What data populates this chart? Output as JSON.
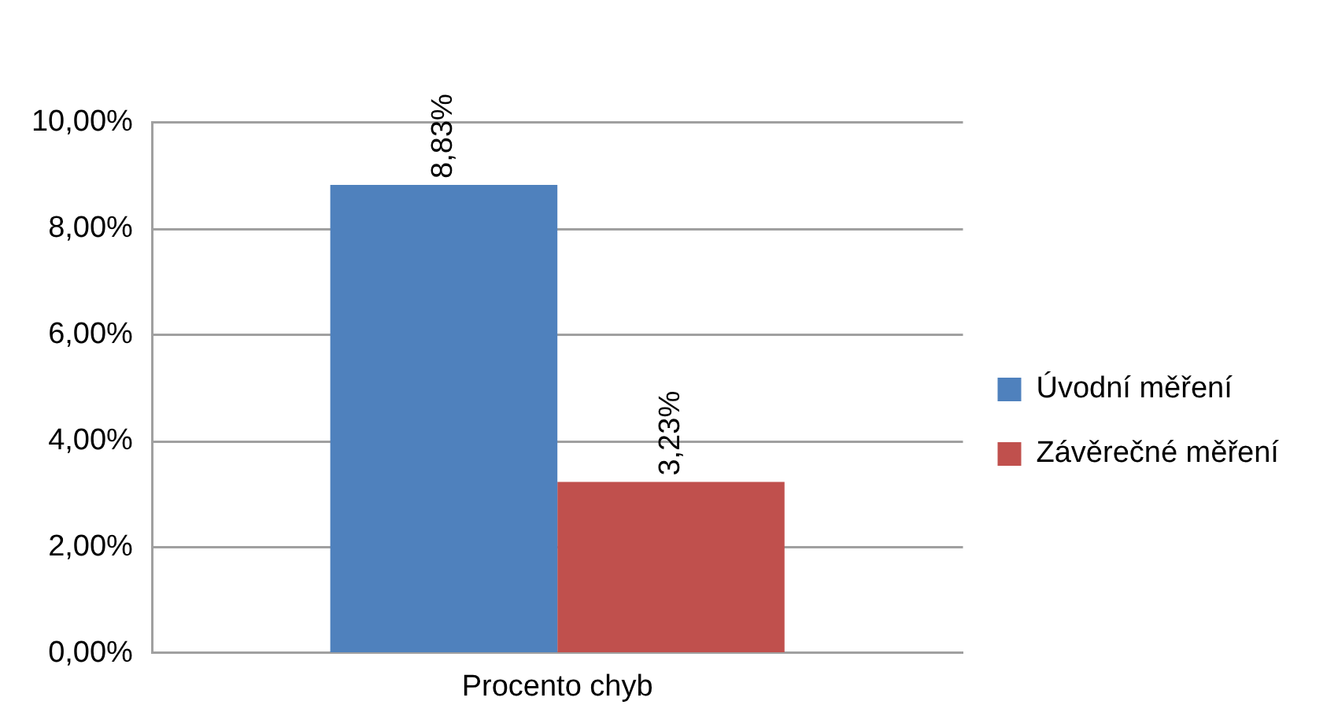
{
  "chart_data": {
    "type": "bar",
    "categories": [
      "Procento chyb"
    ],
    "series": [
      {
        "name": "Úvodní měření",
        "color": "#4f81bd",
        "values": [
          8.83
        ],
        "value_labels": [
          "8,83%"
        ]
      },
      {
        "name": "Závěrečné měření",
        "color": "#c0504d",
        "values": [
          3.23
        ],
        "value_labels": [
          "3,23%"
        ]
      }
    ],
    "ylim": [
      0,
      10
    ],
    "yticks": [
      {
        "value": 0,
        "label": "0,00%"
      },
      {
        "value": 2,
        "label": "2,00%"
      },
      {
        "value": 4,
        "label": "4,00%"
      },
      {
        "value": 6,
        "label": "6,00%"
      },
      {
        "value": 8,
        "label": "8,00%"
      },
      {
        "value": 10,
        "label": "10,00%"
      }
    ],
    "grid": "y",
    "legend": "right"
  }
}
